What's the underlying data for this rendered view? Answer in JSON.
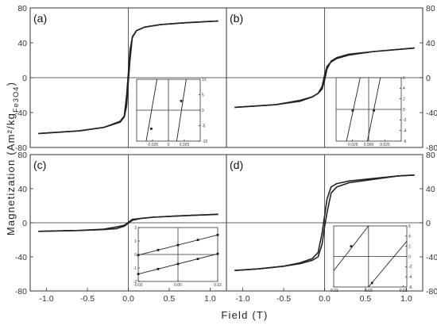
{
  "chart_data": [
    {
      "type": "line",
      "panel_label": "(a)",
      "x": [
        -1.2,
        0.0,
        1.1
      ],
      "series": [
        {
          "x": [
            -1.1,
            -0.6,
            -0.3,
            -0.1,
            -0.05,
            -0.02,
            0.0,
            0.02,
            0.05,
            0.1,
            0.2,
            0.4,
            0.7,
            1.1
          ],
          "values": [
            -64,
            -61,
            -57,
            -50,
            -44,
            -20,
            5,
            32,
            46,
            54,
            58,
            61,
            63,
            65
          ]
        },
        {
          "x": [
            1.1,
            0.7,
            0.4,
            0.2,
            0.1,
            0.05,
            0.02,
            0.0,
            -0.02,
            -0.05,
            -0.1,
            -0.3,
            -0.6,
            -1.1
          ],
          "values": [
            65,
            63,
            61,
            58,
            54,
            47,
            20,
            -5,
            -32,
            -45,
            -51,
            -57,
            -61,
            -64
          ]
        }
      ],
      "xlim": [
        -1.2,
        1.2
      ],
      "ylim": [
        -80,
        80
      ],
      "y_ticks": [
        "-80",
        "-40",
        "0",
        "40",
        "80"
      ],
      "y_axis_side": "left",
      "inset": {
        "xlim": [
          -0.05,
          0.05
        ],
        "ylim": [
          -10,
          10
        ],
        "x_ticks": [
          "-0.025",
          "0",
          "0.025"
        ],
        "y_ticks": [
          "-10",
          "-5",
          "0",
          "5",
          "10"
        ],
        "y_axis_side": "right",
        "lines": [
          {
            "x": [
              -0.035,
              -0.018
            ],
            "values": [
              -10,
              10
            ],
            "marker": {
              "x": -0.027,
              "y": -6
            }
          },
          {
            "x": [
              0.013,
              0.028
            ],
            "values": [
              -10,
              10
            ],
            "marker": {
              "x": 0.02,
              "y": 3
            }
          }
        ]
      }
    },
    {
      "type": "line",
      "panel_label": "(b)",
      "series": [
        {
          "x": [
            -1.1,
            -0.6,
            -0.3,
            -0.15,
            -0.08,
            -0.03,
            0.0,
            0.03,
            0.08,
            0.15,
            0.3,
            0.6,
            1.1
          ],
          "values": [
            -34,
            -31,
            -27,
            -22,
            -18,
            -10,
            3,
            13,
            18,
            22,
            26,
            30,
            34
          ]
        },
        {
          "x": [
            1.1,
            0.6,
            0.3,
            0.15,
            0.08,
            0.03,
            0.0,
            -0.03,
            -0.08,
            -0.15,
            -0.3,
            -0.6,
            -1.1
          ],
          "values": [
            34,
            30,
            27,
            23,
            19,
            10,
            -3,
            -13,
            -18,
            -22,
            -26,
            -31,
            -34
          ]
        }
      ],
      "xlim": [
        -1.2,
        1.2
      ],
      "ylim": [
        -80,
        80
      ],
      "y_ticks": [
        "-80",
        "-40",
        "0",
        "40",
        "80"
      ],
      "y_axis_side": "right",
      "inset": {
        "xlim": [
          -0.05,
          0.05
        ],
        "ylim": [
          -6,
          6
        ],
        "x_ticks": [
          "-0.025",
          "0.000",
          "0.025"
        ],
        "y_ticks": [
          "-6",
          "-4",
          "-2",
          "0",
          "2",
          "4",
          "6"
        ],
        "y_axis_side": "right",
        "lines": [
          {
            "x": [
              -0.034,
              -0.013
            ],
            "values": [
              -6,
              6
            ],
            "marker": {
              "x": -0.0245,
              "y": -0.2
            }
          },
          {
            "x": [
              -0.002,
              0.018
            ],
            "values": [
              -6,
              6
            ],
            "marker": {
              "x": 0.008,
              "y": -0.2
            }
          }
        ]
      }
    },
    {
      "type": "line",
      "panel_label": "(c)",
      "series": [
        {
          "x": [
            -1.1,
            -0.6,
            -0.3,
            -0.15,
            -0.05,
            0.0,
            0.05,
            0.15,
            0.3,
            0.6,
            1.1
          ],
          "values": [
            -10,
            -9,
            -8,
            -7,
            -4,
            -0.5,
            3,
            5,
            6.5,
            8,
            10
          ]
        },
        {
          "x": [
            1.1,
            0.6,
            0.3,
            0.15,
            0.05,
            0.0,
            -0.05,
            -0.15,
            -0.3,
            -0.6,
            -1.1
          ],
          "values": [
            10,
            8,
            6.5,
            5,
            4,
            0.5,
            -3,
            -5,
            -7.5,
            -9,
            -10
          ]
        }
      ],
      "xlim": [
        -1.2,
        1.2
      ],
      "ylim": [
        -80,
        80
      ],
      "y_ticks": [
        "-80",
        "-40",
        "0",
        "40",
        "80"
      ],
      "y_axis_side": "left",
      "inset": {
        "xlim": [
          -0.02,
          0.02
        ],
        "ylim": [
          -2,
          2
        ],
        "x_ticks": [
          "-0.02",
          "0.00",
          "0.02"
        ],
        "y_ticks": [
          "-2",
          "-1",
          "0",
          "1",
          "2"
        ],
        "y_axis_side": "left",
        "lines": [
          {
            "x": [
              -0.02,
              0.02
            ],
            "values": [
              -0.05,
              1.45
            ],
            "markers": [
              {
                "x": -0.02,
                "y": -0.05
              },
              {
                "x": -0.01,
                "y": 0.33
              },
              {
                "x": 0.0,
                "y": 0.7
              },
              {
                "x": 0.01,
                "y": 1.08
              },
              {
                "x": 0.02,
                "y": 1.45
              }
            ]
          },
          {
            "x": [
              -0.02,
              0.02
            ],
            "values": [
              -1.45,
              0.05
            ],
            "markers": [
              {
                "x": -0.02,
                "y": -1.45
              },
              {
                "x": -0.01,
                "y": -1.08
              },
              {
                "x": 0.0,
                "y": -0.7
              },
              {
                "x": 0.01,
                "y": -0.33
              },
              {
                "x": 0.02,
                "y": 0.05
              }
            ]
          }
        ]
      }
    },
    {
      "type": "line",
      "panel_label": "(d)",
      "series": [
        {
          "x": [
            -1.1,
            -0.8,
            -0.5,
            -0.3,
            -0.15,
            -0.08,
            -0.03,
            0.0,
            0.03,
            0.08,
            0.15,
            0.3,
            0.6,
            0.9,
            1.1
          ],
          "values": [
            -56,
            -54,
            -51,
            -48,
            -44,
            -40,
            -25,
            -5,
            12,
            35,
            42,
            47,
            51,
            55,
            56
          ]
        },
        {
          "x": [
            1.1,
            0.9,
            0.6,
            0.3,
            0.15,
            0.08,
            0.03,
            0.0,
            -0.03,
            -0.08,
            -0.15,
            -0.3,
            -0.5,
            -0.8,
            -1.1
          ],
          "values": [
            56,
            55,
            52,
            49,
            46,
            42,
            28,
            8,
            -12,
            -35,
            -42,
            -47,
            -51,
            -54,
            -56
          ]
        }
      ],
      "xlim": [
        -1.2,
        1.2
      ],
      "ylim": [
        -80,
        80
      ],
      "y_ticks": [
        "-80",
        "-40",
        "0",
        "40",
        "80"
      ],
      "y_axis_side": "right",
      "inset": {
        "xlim": [
          -0.02,
          0.022
        ],
        "ylim": [
          -6,
          6
        ],
        "x_ticks": [
          "-0.02",
          "0.00",
          "0.02"
        ],
        "y_ticks": [
          "-6",
          "-4",
          "-2",
          "0",
          "2",
          "4",
          "6"
        ],
        "y_axis_side": "right",
        "lines": [
          {
            "x": [
              -0.02,
              0.0
            ],
            "values": [
              -2.8,
              6
            ],
            "marker": {
              "x": -0.01,
              "y": 2
            }
          },
          {
            "x": [
              0.0,
              0.022
            ],
            "values": [
              -6,
              3
            ],
            "marker": {
              "x": 0.002,
              "y": -5.2
            }
          }
        ]
      }
    }
  ],
  "shared": {
    "x_ticks_bottom": [
      "-1.0",
      "-0.5",
      "0.0",
      "0.5",
      "1.0"
    ],
    "ylabel": "Magnetization (Am²/kg",
    "ylabel_sub": "Fe3O4",
    "ylabel_close": ")",
    "xlabel": "Field (T)"
  }
}
